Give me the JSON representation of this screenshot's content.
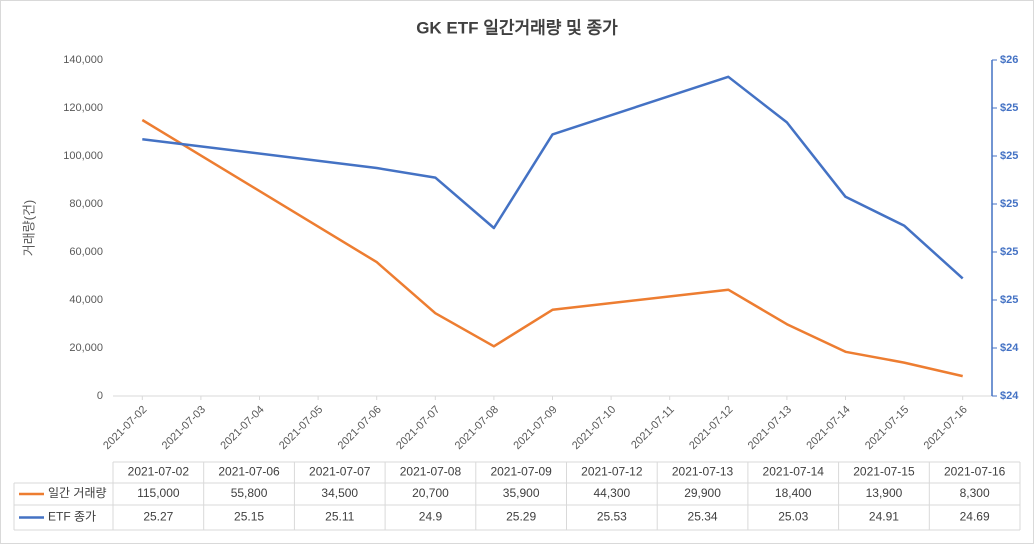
{
  "chart_data": {
    "type": "line",
    "title": "GK ETF 일간거래량 및 종가",
    "ylabel": "거래량(건)",
    "x": [
      "2021-07-02",
      "2021-07-06",
      "2021-07-07",
      "2021-07-08",
      "2021-07-09",
      "2021-07-12",
      "2021-07-13",
      "2021-07-14",
      "2021-07-15",
      "2021-07-16"
    ],
    "xlim": [
      "2021-07-02",
      "2021-07-16"
    ],
    "xticks": [
      "2021-07-02",
      "2021-07-03",
      "2021-07-04",
      "2021-07-05",
      "2021-07-06",
      "2021-07-07",
      "2021-07-08",
      "2021-07-09",
      "2021-07-10",
      "2021-07-11",
      "2021-07-12",
      "2021-07-13",
      "2021-07-14",
      "2021-07-15",
      "2021-07-16"
    ],
    "series": [
      {
        "name": "일간 거래량",
        "color": "#ED7D31",
        "values": [
          115000,
          55800,
          34500,
          20700,
          35900,
          44300,
          29900,
          18400,
          13900,
          8300
        ],
        "value_labels": [
          "115,000",
          "55,800",
          "34,500",
          "20,700",
          "35,900",
          "44,300",
          "29,900",
          "18,400",
          "13,900",
          "8,300"
        ]
      },
      {
        "name": "ETF 종가",
        "color": "#4472C4",
        "axis": "y2",
        "values": [
          25.27,
          25.15,
          25.11,
          24.9,
          25.29,
          25.53,
          25.34,
          25.03,
          24.91,
          24.69
        ]
      }
    ],
    "ylim": [
      0,
      140000
    ],
    "yticks": [
      0,
      {
        "value": 20000,
        "label": "20,000"
      },
      {
        "value": 40000,
        "label": "40,000"
      },
      {
        "value": 60000,
        "label": "60,000"
      },
      {
        "value": 80000,
        "label": "80,000"
      },
      {
        "value": 100000,
        "label": "100,000"
      },
      {
        "value": 120000,
        "label": "120,000"
      },
      {
        "value": 140000,
        "label": "140,000"
      }
    ],
    "y2lim": [
      24.2,
      25.6
    ],
    "y2ticks": [
      {
        "value": 24.2,
        "label": "$24"
      },
      {
        "value": 24.4,
        "label": "$24"
      },
      {
        "value": 24.6,
        "label": "$25"
      },
      {
        "value": 24.8,
        "label": "$25"
      },
      {
        "value": 25.0,
        "label": "$25"
      },
      {
        "value": 25.2,
        "label": "$25"
      },
      {
        "value": 25.4,
        "label": "$25"
      },
      {
        "value": 25.6,
        "label": "$26"
      }
    ],
    "data_table": true
  }
}
